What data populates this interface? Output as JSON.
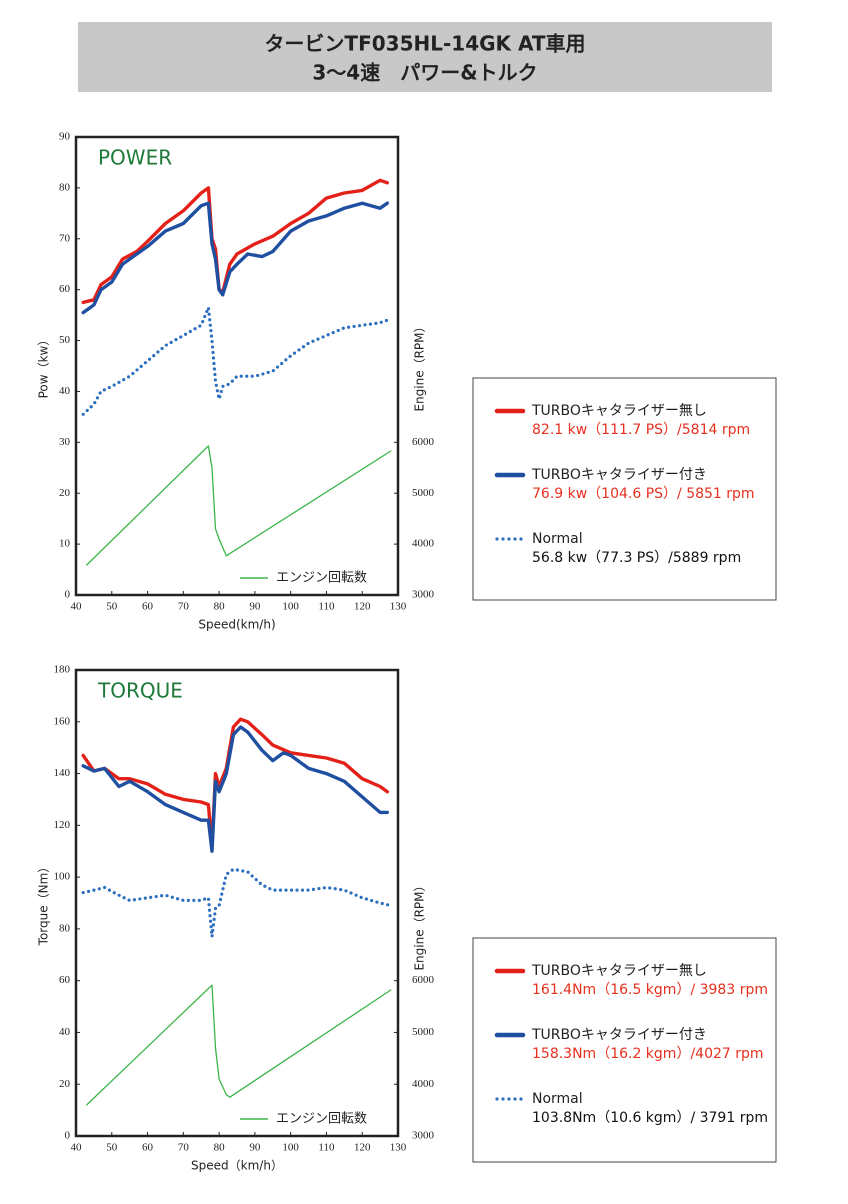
{
  "header": {
    "lines": [
      "タービンTF035HL-14GK AT車用",
      "3～4速　パワー&トルク"
    ]
  },
  "chart_data": [
    {
      "type": "line",
      "title": "POWER",
      "xlabel": "Speed(km/h)",
      "ylabel": "Pow（kw）",
      "y2label": "Engine（RPM）",
      "xlim": [
        40,
        130
      ],
      "xticks": [
        40,
        50,
        60,
        70,
        80,
        90,
        100,
        110,
        120,
        130
      ],
      "ylim": [
        0,
        90
      ],
      "yticks": [
        0,
        10,
        20,
        30,
        40,
        50,
        60,
        70,
        80,
        90
      ],
      "y2lim": [
        3000,
        12000
      ],
      "y2ticks": [
        3000,
        4000,
        5000,
        6000
      ],
      "series": [
        {
          "name": "TURBOキャタライザー無し",
          "note": "82.1 kw（111.7 PS）/5814 rpm",
          "note_color": "#e8301e",
          "color": "#e32119",
          "style": "solid",
          "x": [
            42,
            45,
            47,
            50,
            53,
            57,
            60,
            65,
            70,
            75,
            77,
            78,
            79,
            80,
            81,
            83,
            85,
            90,
            95,
            100,
            105,
            110,
            115,
            120,
            125,
            127
          ],
          "values": [
            57.5,
            58,
            61,
            62.5,
            66,
            67.5,
            69.5,
            73,
            75.5,
            79,
            80,
            70,
            68,
            60,
            59.5,
            65,
            67,
            69,
            70.5,
            73,
            75,
            78,
            79,
            79.5,
            81.5,
            81
          ]
        },
        {
          "name": "TURBOキャタライザー付き",
          "note": "76.9 kw（104.6 PS）/ 5851 rpm",
          "note_color": "#e8301e",
          "color": "#1f4fa0",
          "style": "solid",
          "x": [
            42,
            45,
            47,
            50,
            53,
            57,
            60,
            65,
            70,
            75,
            77,
            78,
            79,
            80,
            81,
            83,
            85,
            88,
            92,
            95,
            100,
            105,
            110,
            115,
            120,
            125,
            127
          ],
          "values": [
            55.5,
            57,
            60,
            61.5,
            65,
            67,
            68.5,
            71.5,
            73,
            76.5,
            77,
            69,
            66,
            60,
            59,
            63.5,
            65,
            67,
            66.5,
            67.5,
            71.5,
            73.5,
            74.5,
            76,
            77,
            76,
            77
          ]
        },
        {
          "name": "Normal",
          "note": "56.8 kw（77.3 PS）/5889 rpm",
          "note_color": "#111111",
          "color": "#2b6fc0",
          "style": "dotted",
          "x": [
            42,
            45,
            47,
            50,
            55,
            60,
            65,
            70,
            75,
            77,
            78,
            79,
            80,
            81,
            83,
            85,
            90,
            95,
            100,
            105,
            110,
            115,
            120,
            125,
            127
          ],
          "values": [
            35.5,
            37.5,
            40,
            41,
            43,
            46,
            49,
            51,
            53,
            56.5,
            50,
            42,
            38.5,
            41,
            41.5,
            43,
            43,
            44,
            47,
            49.5,
            51,
            52.5,
            53,
            53.5,
            54
          ]
        },
        {
          "name": "エンジン回転数",
          "color": "#3cb54a",
          "style": "solid",
          "axis": "y2",
          "x": [
            43,
            77,
            78,
            79,
            80,
            82,
            128
          ],
          "values": [
            3590,
            5930,
            5500,
            4300,
            4100,
            3770,
            5830
          ]
        }
      ]
    },
    {
      "type": "line",
      "title": "TORQUE",
      "xlabel": "Speed（km/h）",
      "ylabel": "Torque（Nm）",
      "y2label": "Engine（RPM）",
      "xlim": [
        40,
        130
      ],
      "xticks": [
        40,
        50,
        60,
        70,
        80,
        90,
        100,
        110,
        120,
        130
      ],
      "ylim": [
        0,
        180
      ],
      "yticks": [
        0,
        20,
        40,
        60,
        80,
        100,
        120,
        140,
        160,
        180
      ],
      "y2lim": [
        3000,
        12000
      ],
      "y2ticks": [
        3000,
        4000,
        5000,
        6000
      ],
      "series": [
        {
          "name": "TURBOキャタライザー無し",
          "note": "161.4Nm（16.5 kgm）/ 3983 rpm",
          "note_color": "#e8301e",
          "color": "#e32119",
          "style": "solid",
          "x": [
            42,
            45,
            48,
            52,
            55,
            60,
            65,
            70,
            75,
            77,
            78,
            79,
            80,
            82,
            84,
            86,
            88,
            92,
            95,
            100,
            105,
            110,
            115,
            120,
            125,
            127
          ],
          "values": [
            147,
            141,
            142,
            138,
            138,
            136,
            132,
            130,
            129,
            128,
            112,
            140,
            135,
            142,
            158,
            161,
            160,
            155,
            151,
            148,
            147,
            146,
            144,
            138,
            135,
            133
          ]
        },
        {
          "name": "TURBOキャタライザー付き",
          "note": "158.3Nm（16.2 kgm）/4027 rpm",
          "note_color": "#e8301e",
          "color": "#1f4fa0",
          "style": "solid",
          "x": [
            42,
            45,
            48,
            52,
            55,
            60,
            65,
            70,
            75,
            77,
            78,
            79,
            80,
            82,
            84,
            86,
            88,
            92,
            95,
            98,
            100,
            105,
            110,
            115,
            120,
            125,
            127
          ],
          "values": [
            143,
            141,
            142,
            135,
            137,
            133,
            128,
            125,
            122,
            122,
            110,
            137,
            133,
            140,
            155,
            158,
            156,
            149,
            145,
            148,
            147,
            142,
            140,
            137,
            131,
            125,
            125
          ]
        },
        {
          "name": "Normal",
          "note": "103.8Nm（10.6 kgm）/ 3791 rpm",
          "note_color": "#111111",
          "color": "#2b6fc0",
          "style": "dotted",
          "x": [
            42,
            45,
            48,
            52,
            55,
            60,
            65,
            70,
            75,
            77,
            78,
            79,
            80,
            82,
            84,
            88,
            92,
            95,
            100,
            105,
            110,
            115,
            120,
            125,
            128
          ],
          "values": [
            94,
            95,
            96,
            93,
            91,
            92,
            93,
            91,
            91,
            92,
            77,
            88,
            89,
            101,
            103,
            102,
            97,
            95,
            95,
            95,
            96,
            95,
            92,
            90,
            89
          ]
        },
        {
          "name": "エンジン回転数",
          "color": "#3cb54a",
          "style": "solid",
          "axis": "y2",
          "x": [
            43,
            78,
            79,
            80,
            82,
            83,
            128
          ],
          "values": [
            3600,
            5915,
            4700,
            4100,
            3800,
            3750,
            5820
          ]
        }
      ]
    }
  ]
}
